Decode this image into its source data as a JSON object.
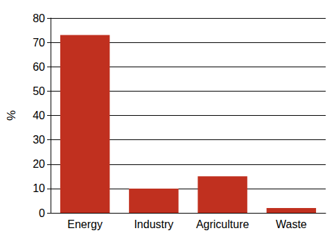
{
  "chart_data": {
    "type": "bar",
    "y_label": "%",
    "categories": [
      "Energy",
      "Industry",
      "Agriculture",
      "Waste"
    ],
    "values": [
      73,
      10,
      15,
      2
    ],
    "color": "#c0301f",
    "ylim": [
      0,
      80
    ],
    "yticks": [
      0,
      10,
      20,
      30,
      40,
      50,
      60,
      70,
      80
    ],
    "grid": true
  }
}
